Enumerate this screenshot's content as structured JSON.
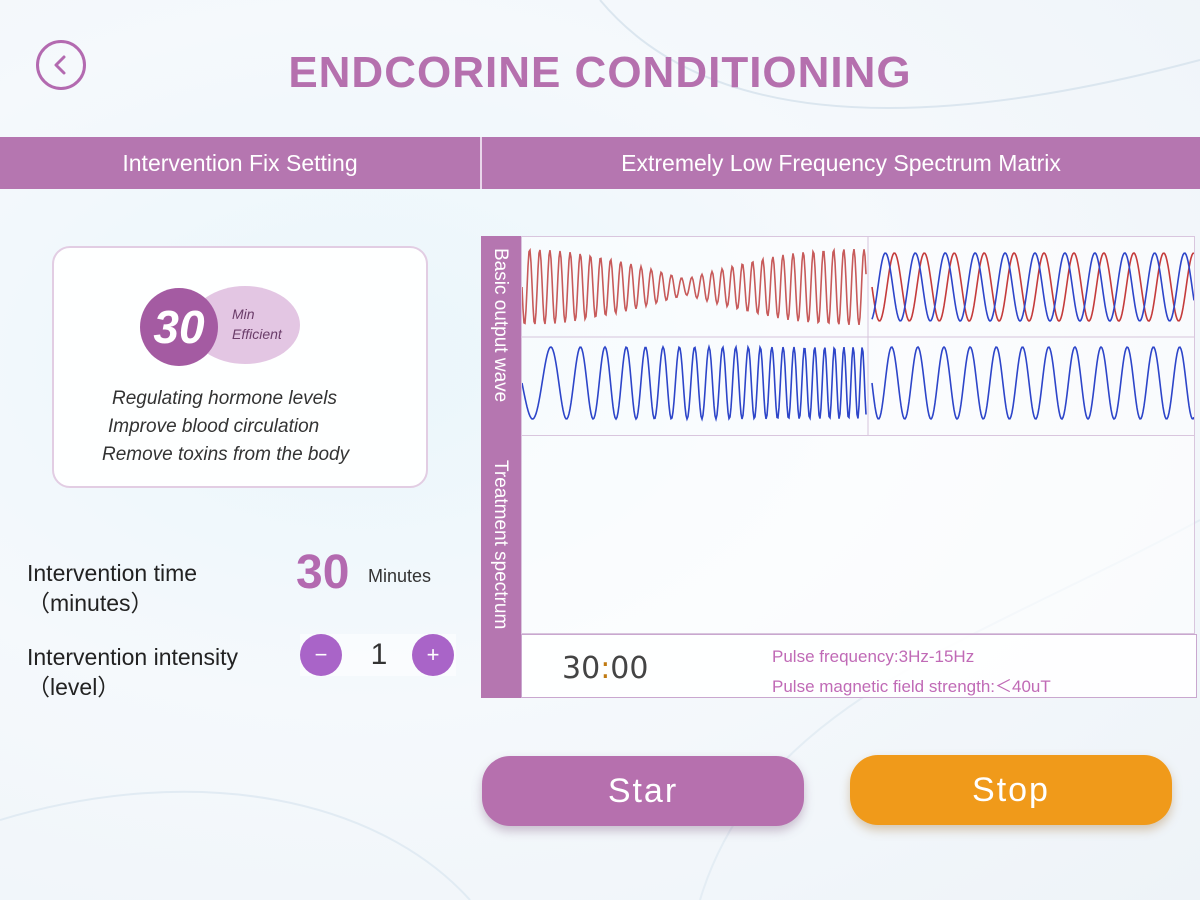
{
  "title": "ENDCORINE CONDITIONING",
  "header": {
    "left_label": "Intervention Fix Setting",
    "right_label": "Extremely Low Frequency Spectrum Matrix"
  },
  "info_card": {
    "badge_number": "30",
    "badge_unit_line1": "Min",
    "badge_unit_line2": "Efficient",
    "benefits": [
      "Regulating hormone levels",
      "Improve blood circulation",
      "Remove toxins from the body"
    ]
  },
  "settings": {
    "time_label": "Intervention time",
    "time_sublabel": "（minutes）",
    "time_value": "30",
    "time_unit": "Minutes",
    "intensity_label": "Intervention intensity",
    "intensity_sublabel": "（level）",
    "intensity_value": "1",
    "minus_symbol": "−",
    "plus_symbol": "+"
  },
  "matrix": {
    "side_label_top": "Basic output wave",
    "side_label_bottom": "Treatment spectrum",
    "timer_minutes": "30",
    "timer_seconds": "00",
    "pulse_frequency": "Pulse frequency:3Hz-15Hz",
    "pulse_strength": "Pulse magnetic field strength:＜40uT"
  },
  "buttons": {
    "start_label": "Star",
    "stop_label": "Stop"
  },
  "colors": {
    "accent": "#b576b0",
    "title": "#b570ae",
    "stop": "#f09a1a",
    "wave_red": "#c43b3b",
    "wave_blue": "#2d45c9"
  },
  "icons": {
    "back": "chevron-left-icon"
  }
}
